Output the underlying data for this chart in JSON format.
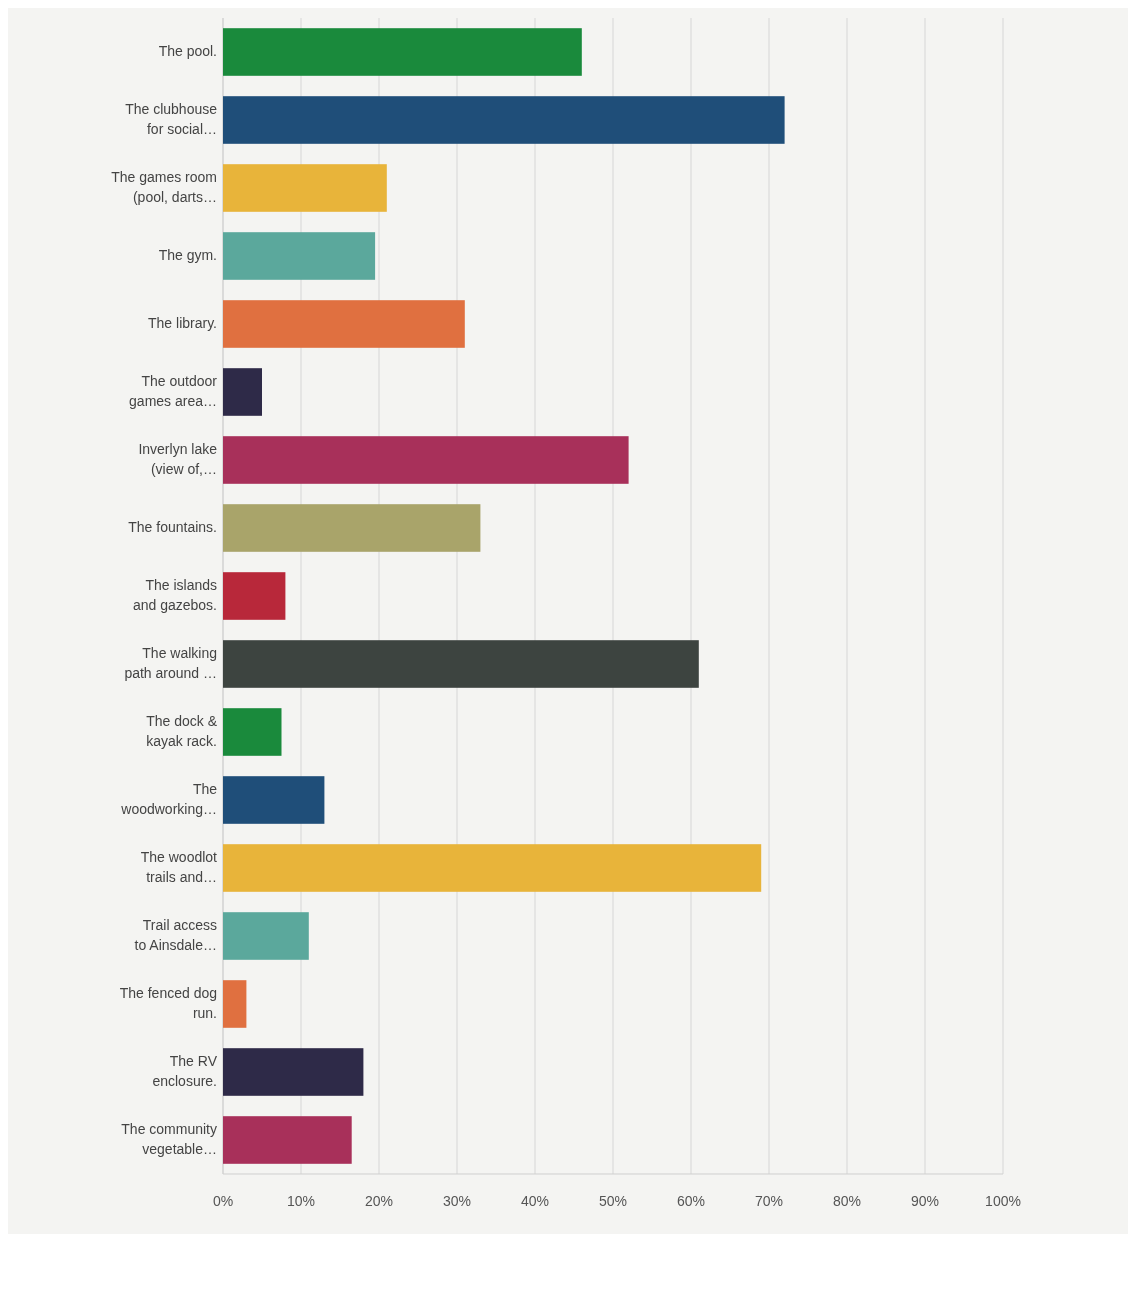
{
  "chart_data": {
    "type": "bar",
    "orientation": "horizontal",
    "categories": [
      "The pool.",
      "The clubhouse for social…",
      "The games room (pool, darts…",
      "The gym.",
      "The library.",
      "The outdoor games area…",
      "Inverlyn lake (view of,…",
      "The fountains.",
      "The islands and gazebos.",
      "The walking path around …",
      "The dock & kayak rack.",
      "The woodworking…",
      "The woodlot trails and…",
      "Trail access to Ainsdale…",
      "The fenced dog run.",
      "The RV enclosure.",
      "The community vegetable…"
    ],
    "values": [
      46,
      72,
      21,
      19.5,
      31,
      5,
      52,
      33,
      8,
      61,
      7.5,
      13,
      69,
      11,
      3,
      18,
      16.5
    ],
    "colors": [
      "#1a8a3c",
      "#1f4e79",
      "#e8b43a",
      "#5ba89c",
      "#e07040",
      "#2e2a48",
      "#a8305a",
      "#a9a46a",
      "#b8283a",
      "#3d4440",
      "#1a8a3c",
      "#1f4e79",
      "#e8b43a",
      "#5ba89c",
      "#e07040",
      "#2e2a48",
      "#a8305a"
    ],
    "xlim": [
      0,
      100
    ],
    "xticks": [
      {
        "value": 0,
        "label": "0%"
      },
      {
        "value": 10,
        "label": "10%"
      },
      {
        "value": 20,
        "label": "20%"
      },
      {
        "value": 30,
        "label": "30%"
      },
      {
        "value": 40,
        "label": "40%"
      },
      {
        "value": 50,
        "label": "50%"
      },
      {
        "value": 60,
        "label": "60%"
      },
      {
        "value": 70,
        "label": "70%"
      },
      {
        "value": 80,
        "label": "80%"
      },
      {
        "value": 90,
        "label": "90%"
      },
      {
        "value": 100,
        "label": "100%"
      }
    ],
    "grid": "x"
  }
}
